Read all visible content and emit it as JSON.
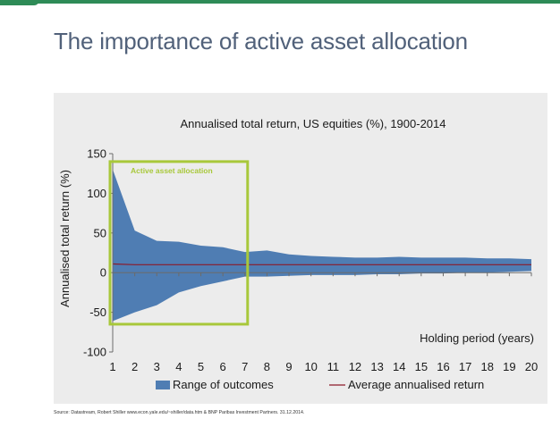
{
  "slide": {
    "title": "The importance of active asset allocation",
    "source": "Source: Datastream, Robert Shiller  www.econ.yale.edu/~shiller/data.htm & BNP Paribas Investment Partners. 31.12.2014."
  },
  "chart_data": {
    "type": "area",
    "title": "Annualised total return, US equities (%), 1900-2014",
    "xlabel": "Holding period  (years)",
    "ylabel": "Annualised total return (%)",
    "x": [
      1,
      2,
      3,
      4,
      5,
      6,
      7,
      8,
      9,
      10,
      11,
      12,
      13,
      14,
      15,
      16,
      17,
      18,
      19,
      20
    ],
    "x_tick_labels": [
      "1",
      "2",
      "3",
      "4",
      "5",
      "6",
      "7",
      "8",
      "9",
      "10",
      "11",
      "12",
      "13",
      "14",
      "15",
      "16",
      "17",
      "18",
      "19",
      "20"
    ],
    "ylim": [
      -100,
      150
    ],
    "y_ticks": [
      -100,
      -50,
      0,
      50,
      100,
      150
    ],
    "y_tick_labels": [
      "-100",
      "-50",
      "0",
      "50",
      "100",
      "150"
    ],
    "grid": false,
    "legend_position": "bottom",
    "series": [
      {
        "name": "Range of outcomes",
        "kind": "range",
        "color": "#4f7db3",
        "max": [
          130,
          53,
          40,
          39,
          34,
          32,
          26,
          28,
          23,
          21,
          20,
          19,
          19,
          20,
          19,
          19,
          19,
          18,
          18,
          17
        ],
        "min": [
          -61,
          -50,
          -41,
          -25,
          -17,
          -11,
          -5,
          -5,
          -4,
          -3,
          -3,
          -3,
          -2,
          -2,
          -1,
          -1,
          0,
          0,
          1,
          2
        ]
      },
      {
        "name": "Average annualised return",
        "kind": "line",
        "color": "#8b1a2a",
        "values": [
          11,
          10,
          10,
          10,
          10,
          10,
          10,
          10,
          10,
          10,
          10,
          10,
          10,
          10,
          10,
          10,
          10,
          10,
          10,
          10
        ]
      }
    ],
    "annotation": {
      "label": "Active asset allocation",
      "color": "#a8c83a",
      "x_range": [
        1,
        7
      ],
      "y_range": [
        -65,
        140
      ]
    }
  }
}
